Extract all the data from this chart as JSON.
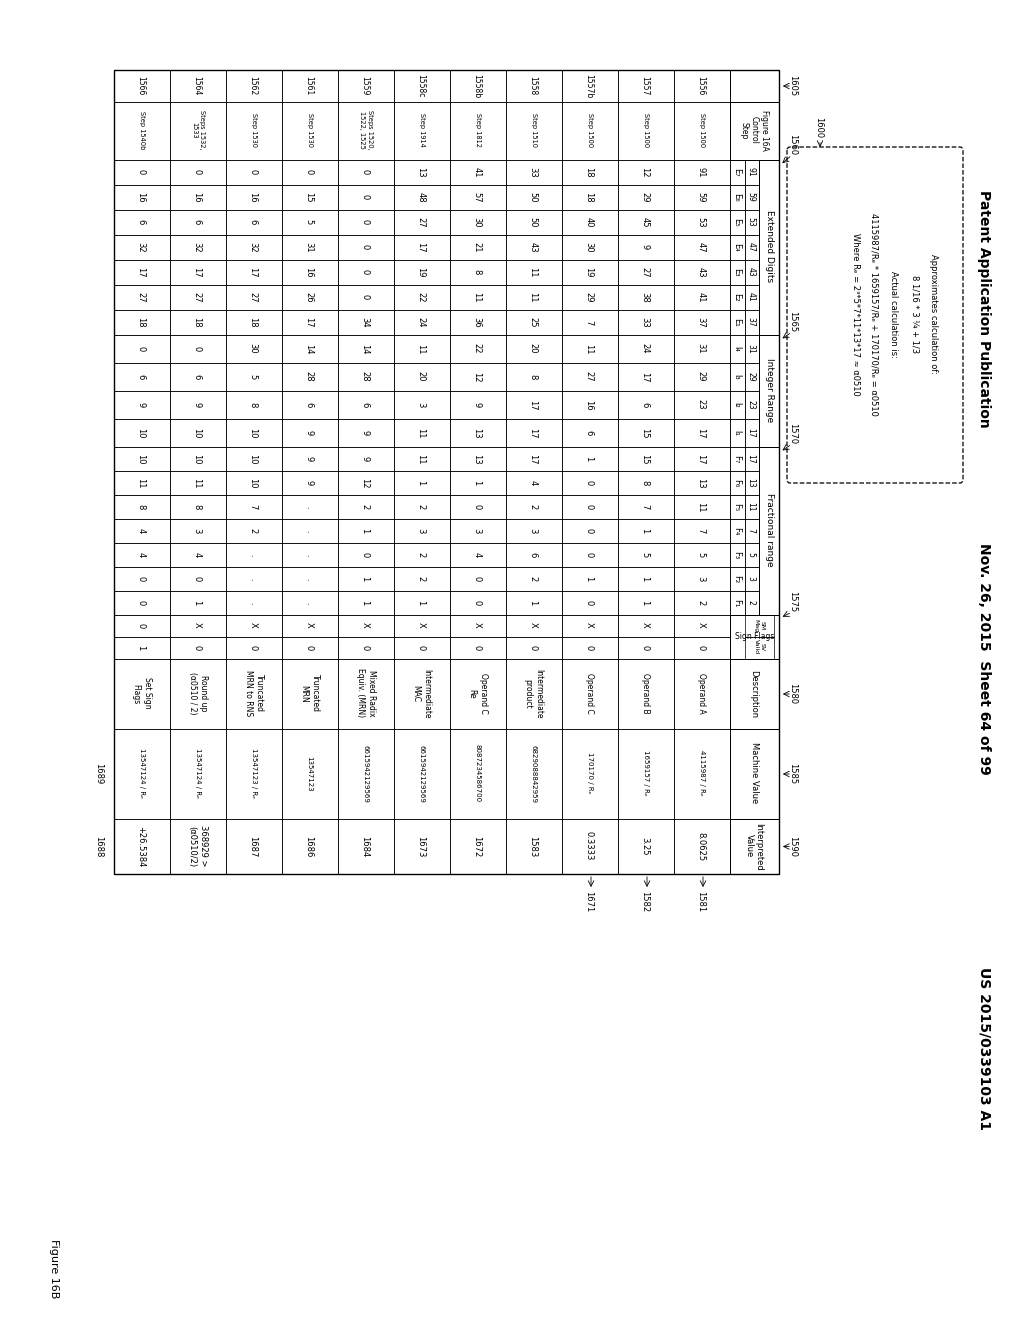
{
  "header_left": "Patent Application Publication",
  "header_mid": "Nov. 26, 2015  Sheet 64 of 99",
  "header_right": "US 2015/0339103 A1",
  "figure_label": "Figure 16B",
  "note_lines": [
    "Approximates calculation of:",
    "8 1/16 * 3 ¼ + 1/3",
    "Actual calculation is:",
    "4115987/Rₑ * 1659157/Rₑ + 170170/Rₑ = α0510",
    "Where Rₑ = 2³*5*7*11*13*17 ≈ α0510"
  ],
  "note_labels": [
    "1580",
    "1585",
    "1590",
    "1600"
  ],
  "col_ref_labels": [
    "1581",
    "1582",
    "1671"
  ],
  "row_ref_labels": [
    "1688",
    "1689"
  ],
  "group_labels": {
    "Extended Digits": "1560",
    "Integer Range": "1565",
    "Fractional range": "1570",
    "Sign Flags": "1575"
  },
  "ctrl_header": "Figure 16A\nControl\nStep",
  "ctrl_label": "1605",
  "digit_numbers": {
    "E7": "91",
    "E6": "59",
    "E5": "53",
    "E4": "47",
    "E3": "43",
    "E2": "41",
    "E1": "37",
    "l4": "31",
    "l3": "29",
    "l2": "23",
    "l1": "17",
    "F7": "17",
    "F6": "13",
    "F5": "11",
    "F4": "7",
    "F3": "5",
    "F2": "3",
    "F1": "2"
  },
  "rows": [
    {
      "step": "1556",
      "ctrl": "Step 1500",
      "E7": "91",
      "E6": "59",
      "E5": "53",
      "E4": "47",
      "E3": "43",
      "E2": "41",
      "E1": "37",
      "l4": "31",
      "l3": "29",
      "l2": "23",
      "l1": "17",
      "F7": "17",
      "F6": "13",
      "F5": "11",
      "F4": "7",
      "F3": "5",
      "F2": "3",
      "F1": "2",
      "SM": "X",
      "SV": "0",
      "desc": "Operand A",
      "machine": "4115987 / Rₑ",
      "interp": "8.0625"
    },
    {
      "step": "1557",
      "ctrl": "Step 1500",
      "E7": "12",
      "E6": "29",
      "E5": "45",
      "E4": "9",
      "E3": "27",
      "E2": "38",
      "E1": "33",
      "l4": "24",
      "l3": "17",
      "l2": "6",
      "l1": "15",
      "F7": "15",
      "F6": "8",
      "F5": "7",
      "F4": "1",
      "F3": "5",
      "F2": "1",
      "F1": "1",
      "SM": "X",
      "SV": "0",
      "desc": "Operand B",
      "machine": "1659157 / Rₑ",
      "interp": "3.25"
    },
    {
      "step": "1557b",
      "ctrl": "Step 1500",
      "E7": "18",
      "E6": "18",
      "E5": "40",
      "E4": "30",
      "E3": "19",
      "E2": "29",
      "E1": "7",
      "l4": "11",
      "l3": "27",
      "l2": "16",
      "l1": "6",
      "F7": "1",
      "F6": "0",
      "F5": "0",
      "F4": "0",
      "F3": "0",
      "F2": "1",
      "F1": "0",
      "SM": "X",
      "SV": "0",
      "desc": "Operand C",
      "machine": "170170 / Rₑ",
      "interp": "0.3333"
    },
    {
      "step": "1558",
      "ctrl": "Step 1510",
      "E7": "33",
      "E6": "50",
      "E5": "50",
      "E4": "43",
      "E3": "11",
      "E2": "11",
      "E1": "25",
      "l4": "20",
      "l3": "8",
      "l2": "17",
      "l1": "17",
      "F7": "17",
      "F6": "4",
      "F5": "2",
      "F4": "3",
      "F3": "6",
      "F2": "2",
      "F1": "1",
      "SM": "X",
      "SV": "0",
      "desc": "Intermediate\nproduct",
      "machine": "6829088842959",
      "interp": "1583"
    },
    {
      "step": "1558b",
      "ctrl": "Step 1812",
      "E7": "41",
      "E6": "57",
      "E5": "30",
      "E4": "21",
      "E3": "8",
      "E2": "11",
      "E1": "36",
      "l4": "22",
      "l3": "12",
      "l2": "9",
      "l1": "13",
      "F7": "13",
      "F6": "1",
      "F5": "0",
      "F4": "3",
      "F3": "4",
      "F2": "0",
      "F1": "0",
      "SM": "X",
      "SV": "0",
      "desc": "Operand C\nRe",
      "machine": "8087234586700",
      "interp": "1672"
    },
    {
      "step": "1558c",
      "ctrl": "Step 1914",
      "E7": "13",
      "E6": "48",
      "E5": "27",
      "E4": "17",
      "E3": "19",
      "E2": "22",
      "E1": "24",
      "l4": "11",
      "l3": "20",
      "l2": "3",
      "l1": "11",
      "F7": "11",
      "F6": "1",
      "F5": "2",
      "F4": "3",
      "F3": "2",
      "F2": "2",
      "F1": "1",
      "SM": "X",
      "SV": "0",
      "desc": "Intermediate\nMAC",
      "machine": "6615942129569",
      "interp": "1673"
    },
    {
      "step": "1559",
      "ctrl": "Steps 1520,\n1522, 1525",
      "E7": "0",
      "E6": "0",
      "E5": "0",
      "E4": "0",
      "E3": "0",
      "E2": "0",
      "E1": "34",
      "l4": "14",
      "l3": "28",
      "l2": "6",
      "l1": "9",
      "F7": "9",
      "F6": "12",
      "F5": "2",
      "F4": "1",
      "F3": "0",
      "F2": "1",
      "F1": "1",
      "SM": "X",
      "SV": "0",
      "desc": "Mixed Radix\nEquiv. (MRN)",
      "machine": "6615942129569",
      "interp": "1684"
    },
    {
      "step": "1561",
      "ctrl": "Step 1530",
      "E7": "0",
      "E6": "15",
      "E5": "5",
      "E4": "31",
      "E3": "16",
      "E2": "26",
      "E1": "17",
      "l4": "14",
      "l3": "28",
      "l2": "6",
      "l1": "9",
      "F7": "9",
      "F6": "9",
      "F5": ".",
      "F4": ".",
      "F3": ".",
      "F2": ".",
      "F1": ".",
      "SM": "X",
      "SV": "0",
      "desc": "Truncated\nMRN",
      "machine": "13547123",
      "interp": "1686"
    },
    {
      "step": "1562",
      "ctrl": "Step 1530",
      "E7": "0",
      "E6": "16",
      "E5": "6",
      "E4": "32",
      "E3": "17",
      "E2": "27",
      "E1": "18",
      "l4": "30",
      "l3": "5",
      "l2": "8",
      "l1": "10",
      "F7": "10",
      "F6": "10",
      "F5": "7",
      "F4": "2",
      "F3": ".",
      "F2": ".",
      "F1": ".",
      "SM": "X",
      "SV": "0",
      "desc": "Truncated\nMRN to RNS",
      "machine": "13547123 / Rₑ",
      "interp": "1687"
    },
    {
      "step": "1564",
      "ctrl": "Steps 1532,\n1533",
      "E7": "0",
      "E6": "16",
      "E5": "6",
      "E4": "32",
      "E3": "17",
      "E2": "27",
      "E1": "18",
      "l4": "0",
      "l3": "6",
      "l2": "9",
      "l1": "10",
      "F7": "10",
      "F6": "11",
      "F5": "8",
      "F4": "3",
      "F3": "4",
      "F2": "0",
      "F1": "1",
      "SM": "X",
      "SV": "0",
      "desc": "Round up\n(α0510 / 2)",
      "machine": "13547124 / Rₑ",
      "interp": "368929 >\n(α0510/2)"
    },
    {
      "step": "1566",
      "ctrl": "Step 1540b",
      "E7": "0",
      "E6": "16",
      "E5": "6",
      "E4": "32",
      "E3": "17",
      "E2": "27",
      "E1": "18",
      "l4": "0",
      "l3": "6",
      "l2": "9",
      "l1": "10",
      "F7": "10",
      "F6": "11",
      "F5": "8",
      "F4": "4",
      "F3": "4",
      "F2": "0",
      "F1": "0",
      "SM": "0",
      "SV": "1",
      "desc": "Set Sign\nFlags",
      "machine": "13547124 / Rₑ",
      "interp": "+26.5384"
    }
  ]
}
